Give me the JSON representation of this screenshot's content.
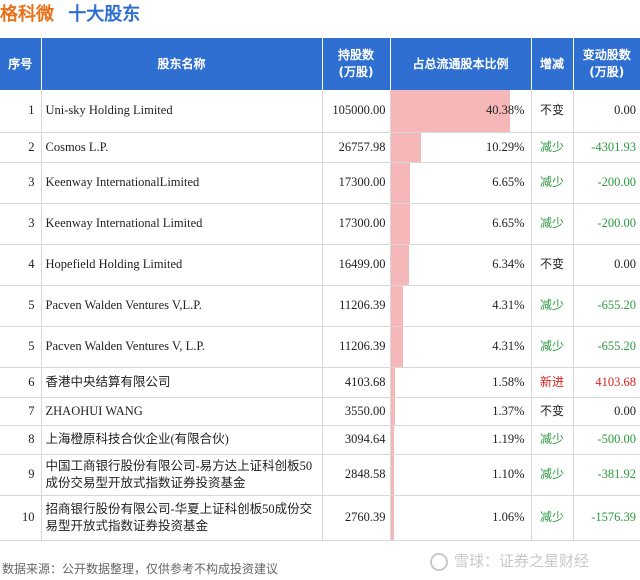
{
  "title": {
    "company": "格科微",
    "section": "十大股东"
  },
  "columns": [
    "序号",
    "股东名称",
    "持股数\n(万股)",
    "占总流通股本比例",
    "增减",
    "变动股数\n(万股)"
  ],
  "rows": [
    {
      "idx": "1",
      "name": "Uni-sky Holding Limited",
      "shares": "105000.00",
      "ratio": "40.38%",
      "ratio_value": 40.38,
      "change": "不变",
      "change_type": "same",
      "delta": "0.00"
    },
    {
      "idx": "2",
      "name": "Cosmos L.P.",
      "shares": "26757.98",
      "ratio": "10.29%",
      "ratio_value": 10.29,
      "change": "减少",
      "change_type": "down",
      "delta": "-4301.93"
    },
    {
      "idx": "3",
      "name": "Keenway InternationalLimited",
      "shares": "17300.00",
      "ratio": "6.65%",
      "ratio_value": 6.65,
      "change": "减少",
      "change_type": "down",
      "delta": "-200.00"
    },
    {
      "idx": "3",
      "name": "Keenway International Limited",
      "shares": "17300.00",
      "ratio": "6.65%",
      "ratio_value": 6.65,
      "change": "减少",
      "change_type": "down",
      "delta": "-200.00"
    },
    {
      "idx": "4",
      "name": "Hopefield Holding Limited",
      "shares": "16499.00",
      "ratio": "6.34%",
      "ratio_value": 6.34,
      "change": "不变",
      "change_type": "same",
      "delta": "0.00"
    },
    {
      "idx": "5",
      "name": "Pacven Walden Ventures V,L.P.",
      "shares": "11206.39",
      "ratio": "4.31%",
      "ratio_value": 4.31,
      "change": "减少",
      "change_type": "down",
      "delta": "-655.20"
    },
    {
      "idx": "5",
      "name": "Pacven Walden Ventures V, L.P.",
      "shares": "11206.39",
      "ratio": "4.31%",
      "ratio_value": 4.31,
      "change": "减少",
      "change_type": "down",
      "delta": "-655.20"
    },
    {
      "idx": "6",
      "name": "香港中央结算有限公司",
      "shares": "4103.68",
      "ratio": "1.58%",
      "ratio_value": 1.58,
      "change": "新进",
      "change_type": "new",
      "delta": "4103.68"
    },
    {
      "idx": "7",
      "name": "ZHAOHUI WANG",
      "shares": "3550.00",
      "ratio": "1.37%",
      "ratio_value": 1.37,
      "change": "不变",
      "change_type": "same",
      "delta": "0.00"
    },
    {
      "idx": "8",
      "name": "上海橙原科技合伙企业(有限合伙)",
      "shares": "3094.64",
      "ratio": "1.19%",
      "ratio_value": 1.19,
      "change": "减少",
      "change_type": "down",
      "delta": "-500.00"
    },
    {
      "idx": "9",
      "name": "中国工商银行股份有限公司-易方达上证科创板50成份交易型开放式指数证券投资基金",
      "shares": "2848.58",
      "ratio": "1.10%",
      "ratio_value": 1.1,
      "change": "减少",
      "change_type": "down",
      "delta": "-381.92"
    },
    {
      "idx": "10",
      "name": "招商银行股份有限公司-华夏上证科创板50成份交易型开放式指数证券投资基金",
      "shares": "2760.39",
      "ratio": "1.06%",
      "ratio_value": 1.06,
      "change": "减少",
      "change_type": "down",
      "delta": "-1576.39"
    }
  ],
  "ratio_max": 47.5,
  "footer": "数据来源：公开数据整理，仅供参考不构成投资建议",
  "watermark": "雪球：证券之星财经"
}
